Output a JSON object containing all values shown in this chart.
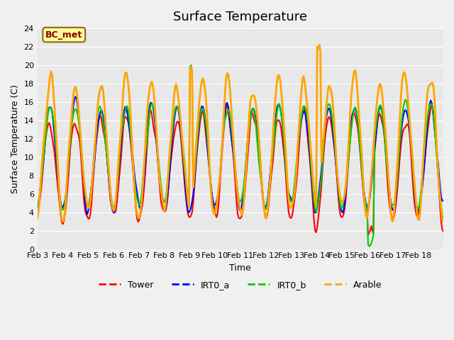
{
  "title": "Surface Temperature",
  "xlabel": "Time",
  "ylabel": "Surface Temperature (C)",
  "ylim": [
    0,
    24
  ],
  "yticks": [
    0,
    2,
    4,
    6,
    8,
    10,
    12,
    14,
    16,
    18,
    20,
    22,
    24
  ],
  "xtick_labels": [
    "Feb 3",
    "Feb 4",
    "Feb 5",
    "Feb 6",
    "Feb 7",
    "Feb 8",
    "Feb 9",
    "Feb 10",
    "Feb 11",
    "Feb 12",
    "Feb 13",
    "Feb 14",
    "Feb 15",
    "Feb 16",
    "Feb 17",
    "Feb 18"
  ],
  "colors": {
    "Tower": "#ff0000",
    "IRT0_a": "#0000ff",
    "IRT0_b": "#00cc00",
    "Arable": "#ffa500"
  },
  "linewidths": {
    "Tower": 1.5,
    "IRT0_a": 1.5,
    "IRT0_b": 1.5,
    "Arable": 2.0
  },
  "legend_labels": [
    "Tower",
    "IRT0_a",
    "IRT0_b",
    "Arable"
  ],
  "annotation_text": "BC_met",
  "annotation_color": "#8b0000",
  "annotation_bg": "#ffff99",
  "annotation_border": "#8b6914",
  "bg_color": "#e8e8e8",
  "plot_bg": "#e8e8e8"
}
